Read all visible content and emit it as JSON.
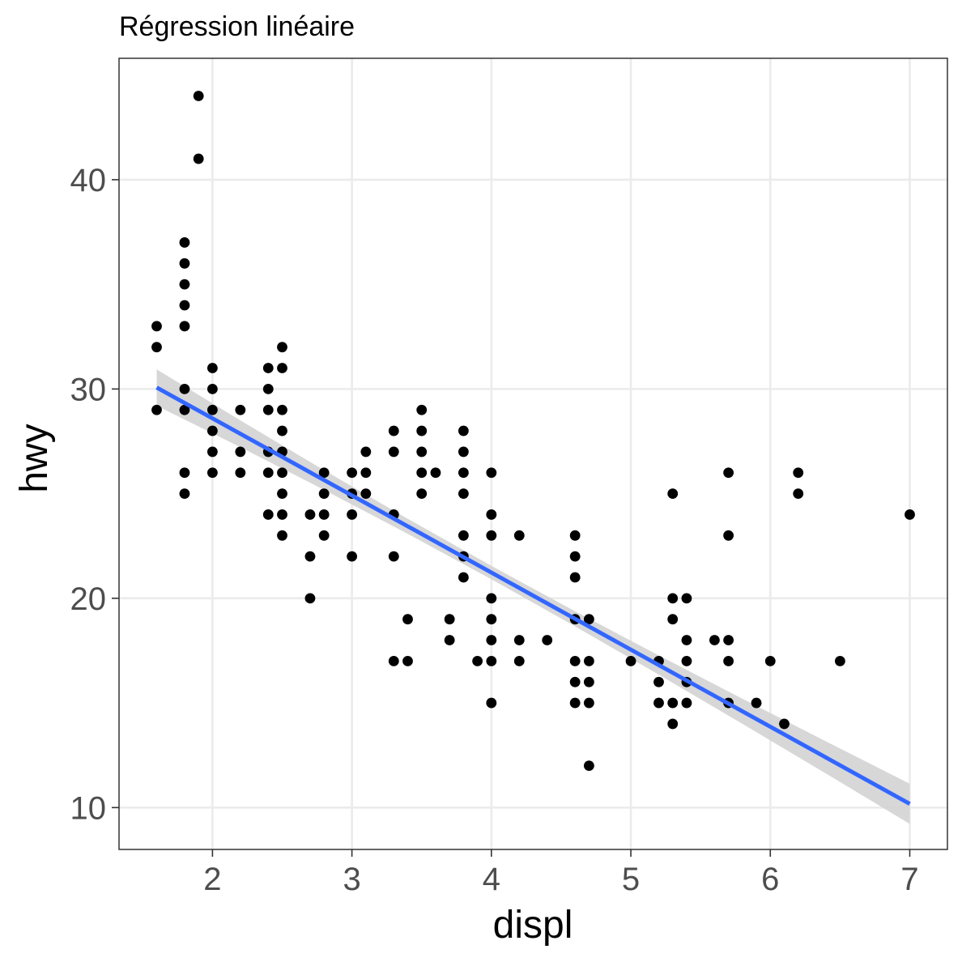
{
  "chart_data": {
    "type": "scatter",
    "title": "Régression linéaire",
    "xlabel": "displ",
    "ylabel": "hwy",
    "xlim": [
      1.33,
      7.27
    ],
    "ylim": [
      8.0,
      45.8
    ],
    "x_ticks": [
      2,
      3,
      4,
      5,
      6,
      7
    ],
    "y_ticks": [
      10,
      20,
      30,
      40
    ],
    "x_tick_labels": [
      "2",
      "3",
      "4",
      "5",
      "6",
      "7"
    ],
    "y_tick_labels": [
      "10",
      "20",
      "30",
      "40"
    ],
    "grid": true,
    "points": [
      [
        1.6,
        33
      ],
      [
        1.6,
        32
      ],
      [
        1.6,
        29
      ],
      [
        1.8,
        37
      ],
      [
        1.8,
        36
      ],
      [
        1.8,
        35
      ],
      [
        1.8,
        34
      ],
      [
        1.8,
        33
      ],
      [
        1.8,
        30
      ],
      [
        1.8,
        29
      ],
      [
        1.8,
        26
      ],
      [
        1.8,
        25
      ],
      [
        1.9,
        44
      ],
      [
        1.9,
        41
      ],
      [
        2.0,
        31
      ],
      [
        2.0,
        30
      ],
      [
        2.0,
        29
      ],
      [
        2.0,
        28
      ],
      [
        2.0,
        27
      ],
      [
        2.0,
        26
      ],
      [
        2.2,
        29
      ],
      [
        2.2,
        27
      ],
      [
        2.2,
        26
      ],
      [
        2.4,
        31
      ],
      [
        2.4,
        30
      ],
      [
        2.4,
        29
      ],
      [
        2.4,
        27
      ],
      [
        2.4,
        26
      ],
      [
        2.4,
        24
      ],
      [
        2.5,
        32
      ],
      [
        2.5,
        31
      ],
      [
        2.5,
        29
      ],
      [
        2.5,
        28
      ],
      [
        2.5,
        27
      ],
      [
        2.5,
        26
      ],
      [
        2.5,
        25
      ],
      [
        2.5,
        24
      ],
      [
        2.5,
        23
      ],
      [
        2.7,
        24
      ],
      [
        2.7,
        22
      ],
      [
        2.7,
        20
      ],
      [
        2.8,
        26
      ],
      [
        2.8,
        25
      ],
      [
        2.8,
        24
      ],
      [
        2.8,
        23
      ],
      [
        3.0,
        26
      ],
      [
        3.0,
        25
      ],
      [
        3.0,
        24
      ],
      [
        3.0,
        22
      ],
      [
        3.1,
        27
      ],
      [
        3.1,
        26
      ],
      [
        3.1,
        25
      ],
      [
        3.3,
        28
      ],
      [
        3.3,
        27
      ],
      [
        3.3,
        24
      ],
      [
        3.3,
        22
      ],
      [
        3.3,
        17
      ],
      [
        3.4,
        19
      ],
      [
        3.4,
        17
      ],
      [
        3.5,
        29
      ],
      [
        3.5,
        28
      ],
      [
        3.5,
        27
      ],
      [
        3.5,
        26
      ],
      [
        3.5,
        25
      ],
      [
        3.6,
        26
      ],
      [
        3.7,
        19
      ],
      [
        3.7,
        18
      ],
      [
        3.8,
        28
      ],
      [
        3.8,
        27
      ],
      [
        3.8,
        26
      ],
      [
        3.8,
        25
      ],
      [
        3.8,
        23
      ],
      [
        3.8,
        22
      ],
      [
        3.8,
        21
      ],
      [
        3.9,
        17
      ],
      [
        4.0,
        26
      ],
      [
        4.0,
        24
      ],
      [
        4.0,
        23
      ],
      [
        4.0,
        20
      ],
      [
        4.0,
        19
      ],
      [
        4.0,
        18
      ],
      [
        4.0,
        17
      ],
      [
        4.0,
        15
      ],
      [
        4.2,
        23
      ],
      [
        4.2,
        18
      ],
      [
        4.2,
        17
      ],
      [
        4.4,
        18
      ],
      [
        4.6,
        23
      ],
      [
        4.6,
        22
      ],
      [
        4.6,
        21
      ],
      [
        4.6,
        19
      ],
      [
        4.6,
        17
      ],
      [
        4.6,
        16
      ],
      [
        4.6,
        15
      ],
      [
        4.7,
        19
      ],
      [
        4.7,
        17
      ],
      [
        4.7,
        16
      ],
      [
        4.7,
        15
      ],
      [
        4.7,
        12
      ],
      [
        5.0,
        17
      ],
      [
        5.2,
        17
      ],
      [
        5.2,
        16
      ],
      [
        5.2,
        15
      ],
      [
        5.3,
        25
      ],
      [
        5.3,
        20
      ],
      [
        5.3,
        19
      ],
      [
        5.3,
        15
      ],
      [
        5.3,
        14
      ],
      [
        5.4,
        20
      ],
      [
        5.4,
        18
      ],
      [
        5.4,
        17
      ],
      [
        5.4,
        16
      ],
      [
        5.4,
        15
      ],
      [
        5.6,
        18
      ],
      [
        5.7,
        26
      ],
      [
        5.7,
        23
      ],
      [
        5.7,
        18
      ],
      [
        5.7,
        17
      ],
      [
        5.7,
        15
      ],
      [
        5.9,
        15
      ],
      [
        6.0,
        17
      ],
      [
        6.1,
        14
      ],
      [
        6.2,
        26
      ],
      [
        6.2,
        25
      ],
      [
        6.5,
        17
      ],
      [
        7.0,
        24
      ]
    ],
    "regression": {
      "method": "lm",
      "line_color": "#3366ff",
      "ribbon_color": "#d3d3d3",
      "x": [
        1.6,
        2.2,
        2.8,
        3.4,
        4.0,
        4.6,
        5.2,
        5.8,
        6.4,
        7.0
      ],
      "y": [
        30.07,
        27.86,
        25.65,
        23.44,
        21.23,
        19.02,
        16.81,
        14.6,
        12.39,
        10.18
      ],
      "lower": [
        29.2,
        27.22,
        25.18,
        23.08,
        20.91,
        18.66,
        16.35,
        14.0,
        11.62,
        9.22
      ],
      "upper": [
        30.94,
        28.5,
        26.12,
        23.8,
        21.55,
        19.38,
        17.27,
        15.2,
        13.16,
        11.14
      ]
    },
    "point_color": "#000000"
  }
}
